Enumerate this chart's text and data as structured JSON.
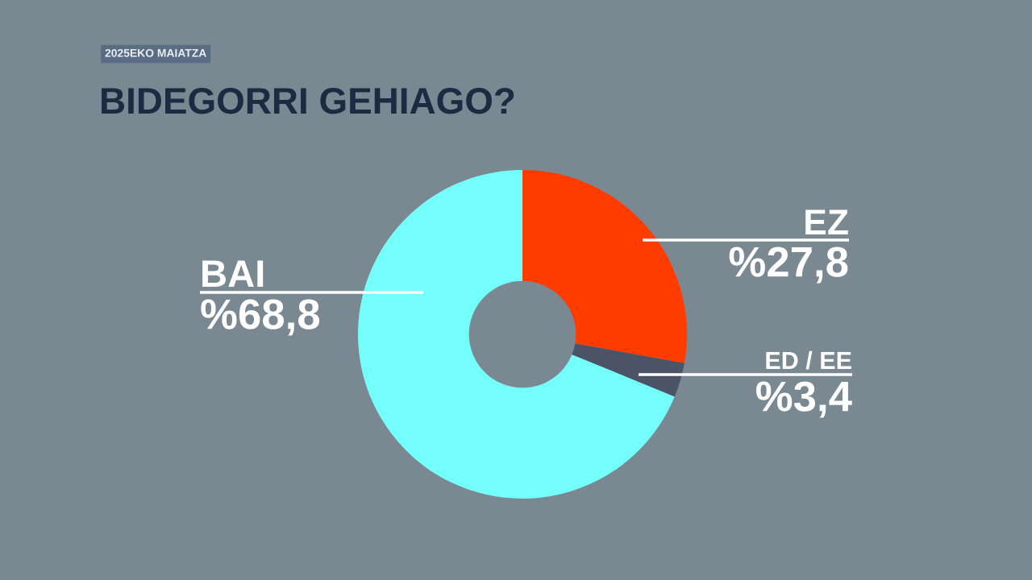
{
  "chart_data": {
    "type": "donut",
    "title": "BIDEGORRI GEHIAGO?",
    "subtitle": "2025EKO MAIATZA",
    "categories": [
      "EZ",
      "ED / EE",
      "BAI"
    ],
    "values": [
      27.8,
      3.4,
      68.8
    ],
    "colors": [
      "#ff3b00",
      "#4b5467",
      "#74fefb"
    ],
    "value_labels": [
      "%27,8",
      "%3,4",
      "%68,8"
    ]
  }
}
